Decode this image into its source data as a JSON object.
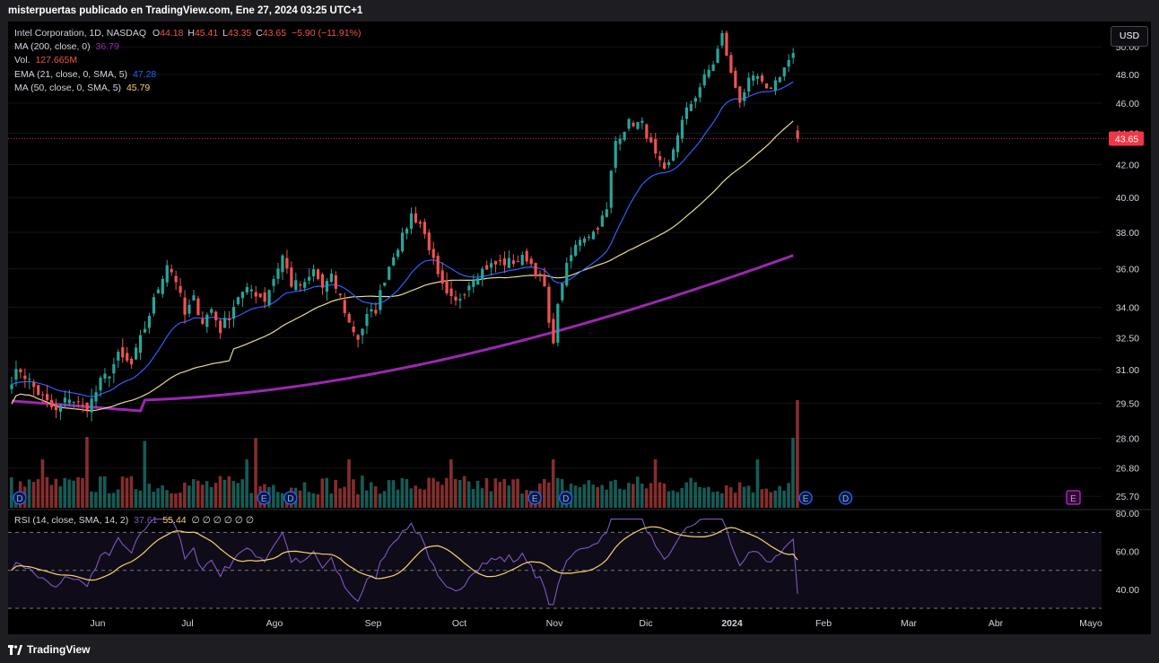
{
  "header": {
    "published": "misterpuertas publicado en TradingView.com, Ene 27, 2024 03:25 UTC+1"
  },
  "footer": {
    "brand": "TradingView"
  },
  "currency_button": "USD",
  "legend": {
    "symbol": "Intel Corporation, 1D, NASDAQ",
    "open_label": "O",
    "open": "44.18",
    "high_label": "H",
    "high": "45.41",
    "low_label": "L",
    "low": "43.35",
    "close_label": "C",
    "close": "43.65",
    "change": "−5.90 (−11.91%)",
    "ma200_label": "MA (200, close, 0)",
    "ma200_value": "36.79",
    "vol_label": "Vol.",
    "vol_value": "127.665M",
    "ema21_label": "EMA (21, close, 0, SMA, 5)",
    "ema21_value": "47.28",
    "ma50_label": "MA (50, close, 0, SMA, 5)",
    "ma50_value": "45.79",
    "rsi_label": "RSI (14, close, SMA, 14, 2)",
    "rsi_value": "37.61",
    "rsi_ma_value": "55.44",
    "rsi_extra": "∅ ∅ ∅ ∅ ∅ ∅"
  },
  "colors": {
    "up": "#26a69a",
    "down": "#ef5350",
    "ema21": "#2962ff",
    "ma50": "#e8dc8a",
    "ma200": "#9c27b0",
    "rsi": "#7e57c2",
    "rsi_ma": "#f5d36b",
    "price_tag": "#f23645"
  },
  "chart_data": [
    {
      "type": "candlestick",
      "title": "Intel Corporation, 1D, NASDAQ",
      "ylim": [
        25.3,
        51.5
      ],
      "scale": "log",
      "y_ticks": [
        "25.70",
        "26.80",
        "28.00",
        "29.50",
        "31.00",
        "32.50",
        "34.00",
        "36.00",
        "38.00",
        "40.00",
        "42.00",
        "44.00",
        "46.00",
        "48.00",
        "50.00"
      ],
      "x_ticks": [
        "Jun",
        "Jul",
        "Ago",
        "Sep",
        "Oct",
        "Nov",
        "Dic",
        "2024",
        "Feb",
        "Mar",
        "Abr",
        "Mayo"
      ],
      "last_price": "43.65",
      "ohlc_anchor_closes": [
        [
          0,
          30.6
        ],
        [
          2,
          31.0
        ],
        [
          5,
          30.2
        ],
        [
          8,
          29.5
        ],
        [
          10,
          29.1
        ],
        [
          13,
          29.8
        ],
        [
          16,
          29.3
        ],
        [
          18,
          29.6
        ],
        [
          20,
          30.4
        ],
        [
          22,
          30.9
        ],
        [
          24,
          31.6
        ],
        [
          27,
          31.2
        ],
        [
          30,
          33.0
        ],
        [
          33,
          35.0
        ],
        [
          35,
          36.3
        ],
        [
          37,
          35.4
        ],
        [
          39,
          33.6
        ],
        [
          41,
          34.4
        ],
        [
          43,
          33.3
        ],
        [
          45,
          33.9
        ],
        [
          47,
          32.9
        ],
        [
          49,
          33.6
        ],
        [
          51,
          34.6
        ],
        [
          54,
          34.9
        ],
        [
          57,
          34.4
        ],
        [
          59,
          35.5
        ],
        [
          61,
          36.7
        ],
        [
          63,
          35.2
        ],
        [
          66,
          35.1
        ],
        [
          68,
          35.9
        ],
        [
          70,
          35.0
        ],
        [
          72,
          35.5
        ],
        [
          74,
          34.5
        ],
        [
          76,
          33.2
        ],
        [
          78,
          32.5
        ],
        [
          80,
          33.5
        ],
        [
          82,
          33.9
        ],
        [
          84,
          35.5
        ],
        [
          86,
          36.8
        ],
        [
          88,
          37.7
        ],
        [
          90,
          39.0
        ],
        [
          92,
          38.5
        ],
        [
          94,
          37.2
        ],
        [
          96,
          35.5
        ],
        [
          98,
          34.5
        ],
        [
          100,
          34.2
        ],
        [
          102,
          34.9
        ],
        [
          104,
          35.6
        ],
        [
          107,
          36.1
        ],
        [
          110,
          36.3
        ],
        [
          113,
          36.4
        ],
        [
          116,
          36.6
        ],
        [
          118,
          35.9
        ],
        [
          120,
          35.0
        ],
        [
          121,
          33.0
        ],
        [
          122,
          32.5
        ],
        [
          124,
          35.4
        ],
        [
          126,
          36.7
        ],
        [
          128,
          37.7
        ],
        [
          131,
          38.0
        ],
        [
          133,
          38.8
        ],
        [
          134,
          39.2
        ],
        [
          135,
          41.5
        ],
        [
          136,
          43.5
        ],
        [
          139,
          44.7
        ],
        [
          142,
          44.6
        ],
        [
          145,
          42.5
        ],
        [
          147,
          41.5
        ],
        [
          148,
          42.0
        ],
        [
          150,
          44.0
        ],
        [
          152,
          45.5
        ],
        [
          154,
          46.5
        ],
        [
          156,
          47.8
        ],
        [
          158,
          48.8
        ],
        [
          159,
          49.8
        ],
        [
          160,
          50.9
        ],
        [
          162,
          48.0
        ],
        [
          164,
          46.2
        ],
        [
          166,
          47.5
        ],
        [
          168,
          47.8
        ],
        [
          170,
          46.8
        ],
        [
          172,
          47.5
        ],
        [
          174,
          48.5
        ],
        [
          176,
          49.5
        ],
        [
          177,
          43.65
        ]
      ],
      "volume_unit": "shares",
      "volume_last": "127.665M"
    },
    {
      "type": "line",
      "title": "RSI (14, close, SMA, 14, 2)",
      "ylim": [
        30,
        82
      ],
      "y_ticks": [
        "40.00",
        "60.00",
        "80.00"
      ],
      "bands": [
        30,
        50,
        70
      ],
      "series": [
        {
          "name": "RSI",
          "last": 37.61
        },
        {
          "name": "RSI-based MA",
          "last": 55.44
        }
      ]
    }
  ]
}
